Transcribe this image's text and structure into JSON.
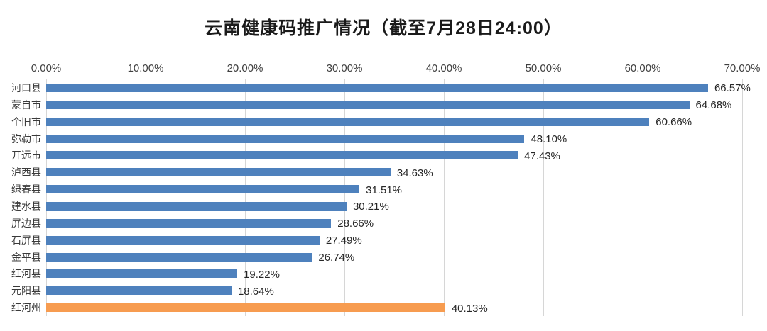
{
  "title": "云南健康码推广情况（截至7月28日24:00）",
  "colors": {
    "bar_default": "#4E81BD",
    "bar_highlight": "#F79C50",
    "gridline": "#D6D6D6",
    "title_text": "#1A1A1A",
    "tick_text": "#3F3F3F",
    "value_text": "#262626",
    "category_text": "#3A3A3A"
  },
  "chart_data": {
    "type": "bar",
    "orientation": "horizontal",
    "title": "云南健康码推广情况（截至7月28日24:00）",
    "categories": [
      "河口县",
      "蒙自市",
      "个旧市",
      "弥勒市",
      "开远市",
      "泸西县",
      "绿春县",
      "建水县",
      "屏边县",
      "石屏县",
      "金平县",
      "红河县",
      "元阳县",
      "红河州"
    ],
    "values": [
      66.57,
      64.68,
      60.66,
      48.1,
      47.43,
      34.63,
      31.51,
      30.21,
      28.66,
      27.49,
      26.74,
      19.22,
      18.64,
      40.13
    ],
    "value_labels": [
      "66.57%",
      "64.68%",
      "60.66%",
      "48.10%",
      "47.43%",
      "34.63%",
      "31.51%",
      "30.21%",
      "28.66%",
      "27.49%",
      "26.74%",
      "19.22%",
      "18.64%",
      "40.13%"
    ],
    "highlight_index": 13,
    "x_ticks": [
      "0.00%",
      "10.00%",
      "20.00%",
      "30.00%",
      "40.00%",
      "50.00%",
      "60.00%",
      "70.00%"
    ],
    "x_tick_values": [
      0,
      10,
      20,
      30,
      40,
      50,
      60,
      70
    ],
    "xlim": [
      0,
      70
    ],
    "axis_position": "top",
    "grid": true,
    "legend": "none"
  }
}
